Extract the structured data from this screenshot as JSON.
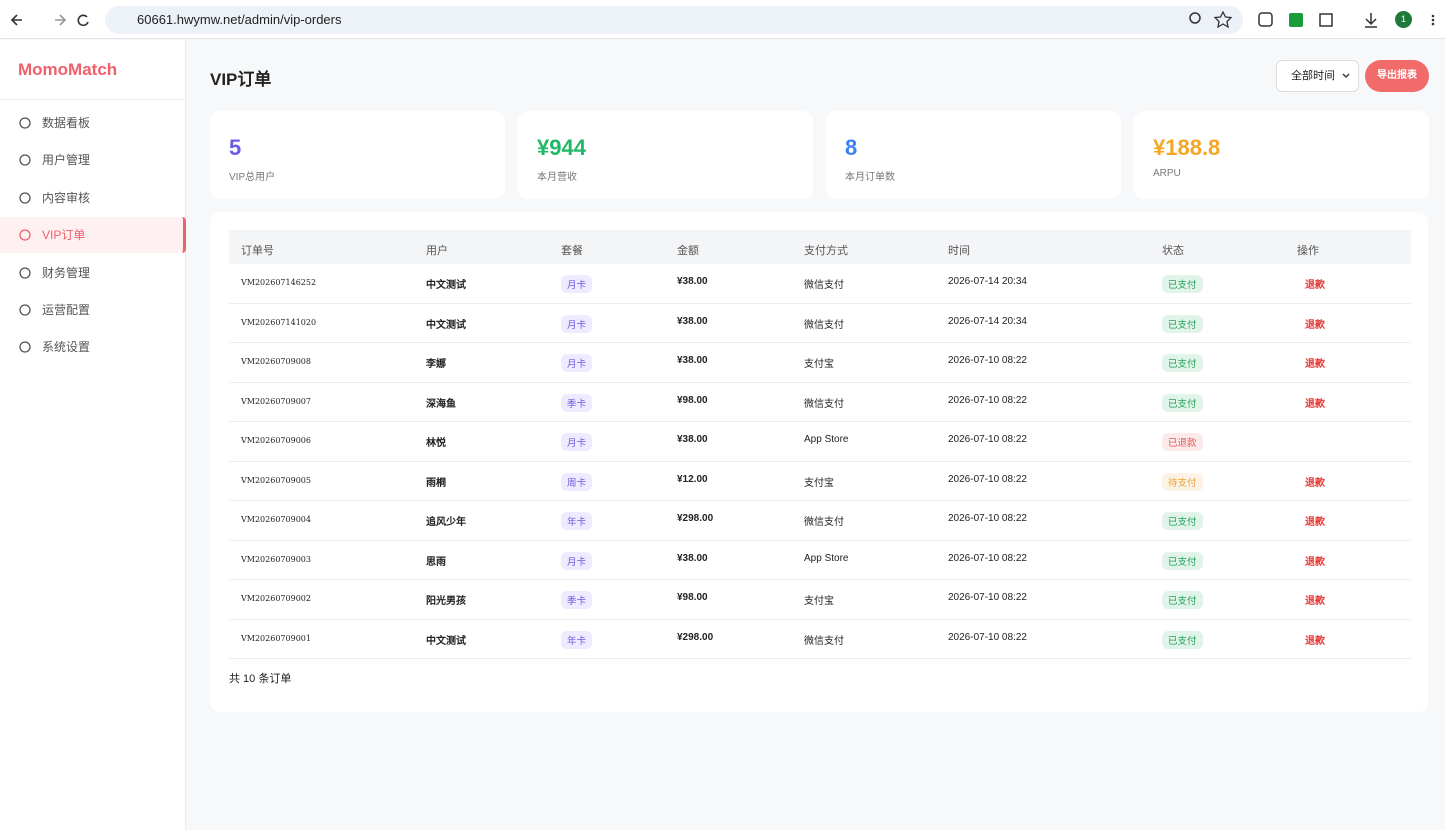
{
  "browser": {
    "url": "60661.hwymw.net/admin/vip-orders",
    "profile": "1"
  },
  "sidebar": {
    "brand": "MomoMatch",
    "menu": [
      "数据看板",
      "用户管理",
      "内容审核",
      "VIP订单",
      "财务管理",
      "运营配置",
      "系统设置"
    ],
    "active": 3
  },
  "header": {
    "title": "VIP订单",
    "filter": "全部时间",
    "export": "导出报表"
  },
  "stats": [
    {
      "value": "5",
      "label": "VIP总用户",
      "color": "#6c5ce7"
    },
    {
      "value": "¥944",
      "label": "本月营收",
      "color": "#22b866"
    },
    {
      "value": "8",
      "label": "本月订单数",
      "color": "#3b82f6"
    },
    {
      "value": "¥188.8",
      "label": "ARPU",
      "color": "#f5a623"
    }
  ],
  "table": {
    "columns": [
      "订单号",
      "用户",
      "套餐",
      "金额",
      "支付方式",
      "时间",
      "状态",
      "操作"
    ],
    "rows": [
      {
        "id": "VM202607146252",
        "user": "中文测试",
        "plan": "月卡",
        "amount": "¥38.00",
        "payment": "微信支付",
        "time": "2026-07-14 20:34",
        "status": "已支付",
        "status_color": "#22a05a",
        "action": "退款"
      },
      {
        "id": "VM202607141020",
        "user": "中文测试",
        "plan": "月卡",
        "amount": "¥38.00",
        "payment": "微信支付",
        "time": "2026-07-14 20:34",
        "status": "已支付",
        "status_color": "#22a05a",
        "action": "退款"
      },
      {
        "id": "VM20260709008",
        "user": "李娜",
        "plan": "月卡",
        "amount": "¥38.00",
        "payment": "支付宝",
        "time": "2026-07-10 08:22",
        "status": "已支付",
        "status_color": "#22a05a",
        "action": "退款"
      },
      {
        "id": "VM20260709007",
        "user": "深海鱼",
        "plan": "季卡",
        "amount": "¥98.00",
        "payment": "微信支付",
        "time": "2026-07-10 08:22",
        "status": "已支付",
        "status_color": "#22a05a",
        "action": "退款"
      },
      {
        "id": "VM20260709006",
        "user": "林悦",
        "plan": "月卡",
        "amount": "¥38.00",
        "payment": "App Store",
        "time": "2026-07-10 08:22",
        "status": "已退款",
        "status_color": "#e05a5a"
      },
      {
        "id": "VM20260709005",
        "user": "雨桐",
        "plan": "周卡",
        "amount": "¥12.00",
        "payment": "支付宝",
        "time": "2026-07-10 08:22",
        "status": "待支付",
        "status_color": "#e6a23c",
        "action": "退款"
      },
      {
        "id": "VM20260709004",
        "user": "追风少年",
        "plan": "年卡",
        "amount": "¥298.00",
        "payment": "微信支付",
        "time": "2026-07-10 08:22",
        "status": "已支付",
        "status_color": "#22a05a",
        "action": "退款"
      },
      {
        "id": "VM20260709003",
        "user": "思雨",
        "plan": "月卡",
        "amount": "¥38.00",
        "payment": "App Store",
        "time": "2026-07-10 08:22",
        "status": "已支付",
        "status_color": "#22a05a",
        "action": "退款"
      },
      {
        "id": "VM20260709002",
        "user": "阳光男孩",
        "plan": "季卡",
        "amount": "¥98.00",
        "payment": "支付宝",
        "time": "2026-07-10 08:22",
        "status": "已支付",
        "status_color": "#22a05a",
        "action": "退款"
      },
      {
        "id": "VM20260709001",
        "user": "中文测试",
        "plan": "年卡",
        "amount": "¥298.00",
        "payment": "微信支付",
        "time": "2026-07-10 08:22",
        "status": "已支付",
        "status_color": "#22a05a",
        "action": "退款"
      }
    ],
    "footer": "共 10 条订单"
  }
}
